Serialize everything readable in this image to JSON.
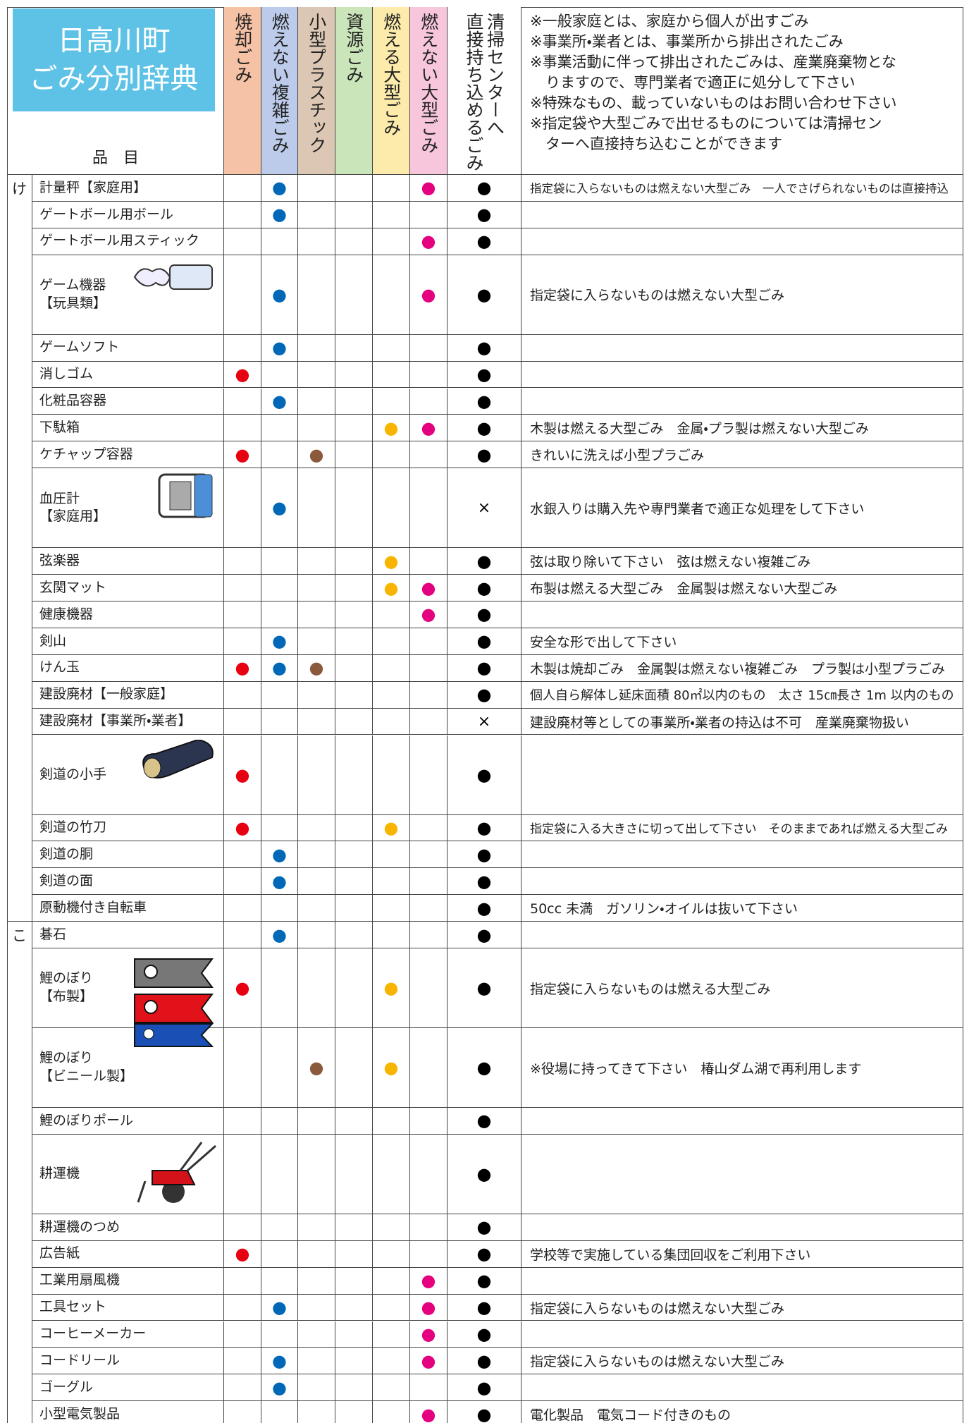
{
  "header": {
    "title": [
      "日高川町",
      "ごみ分別辞典"
    ],
    "item_label": "品　目",
    "columns": [
      {
        "label": [
          "焼却ごみ"
        ],
        "bg": "#f6c2a6",
        "dot": "#e60012"
      },
      {
        "label": [
          "燃えない複雑ごみ"
        ],
        "bg": "#bccbea",
        "dot": "#0068b7"
      },
      {
        "label": [
          "小型プラスチック"
        ],
        "bg": "#dcc7b4",
        "dot": "#8b5a3c"
      },
      {
        "label": [
          "資源ごみ"
        ],
        "bg": "#cbe5bb",
        "dot": "#3a9a3a"
      },
      {
        "label": [
          "燃える大型ごみ"
        ],
        "bg": "#fcebaa",
        "dot": "#f8b500"
      },
      {
        "label": [
          "燃えない大型ごみ"
        ],
        "bg": "#f7c6dd",
        "dot": "#e4007f"
      },
      {
        "label": [
          "清掃センターへ",
          "直接持ち込めるごみ"
        ],
        "bg": "#ffffff",
        "dot": "#000000"
      }
    ],
    "notes": [
      [
        "※一般家庭とは、家庭から個人が出すごみ"
      ],
      [
        "※事業所・業者とは、事業所から排出されたごみ"
      ],
      [
        "※事業活動に伴って排出されたごみは、産業廃棄物とな",
        "りますので、専門業者で適正に処分して下さい"
      ],
      [
        "※特殊なもの、載っていないものはお問い合わせ下さい"
      ],
      [
        "※指定袋や大型ごみで出せるものについては清掃セン",
        "ターへ直接持ち込むことができます"
      ]
    ]
  },
  "sections": [
    {
      "kana": "け",
      "rows": [
        {
          "item": [
            "計量秤【家庭用】"
          ],
          "cells": [
            null,
            "●",
            null,
            null,
            null,
            "●",
            "●"
          ],
          "note": "指定袋に入らないものは燃えない大型ごみ　一人でさげられないものは直接持込"
        },
        {
          "item": [
            "ゲートボール用ボール"
          ],
          "cells": [
            null,
            "●",
            null,
            null,
            null,
            null,
            "●"
          ]
        },
        {
          "item": [
            "ゲートボール用スティック"
          ],
          "cells": [
            null,
            null,
            null,
            null,
            null,
            "●",
            "●"
          ]
        },
        {
          "item": [
            "ゲーム機器",
            "【玩具類】"
          ],
          "cells": [
            null,
            "●",
            null,
            null,
            null,
            "●",
            "●"
          ],
          "note": "指定袋に入らないものは燃えない大型ごみ"
        },
        {
          "item": [
            "ゲームソフト"
          ],
          "cells": [
            null,
            "●",
            null,
            null,
            null,
            null,
            "●"
          ]
        },
        {
          "item": [
            "消しゴム"
          ],
          "cells": [
            "●",
            null,
            null,
            null,
            null,
            null,
            "●"
          ]
        },
        {
          "item": [
            "化粧品容器"
          ],
          "cells": [
            null,
            "●",
            null,
            null,
            null,
            null,
            "●"
          ]
        },
        {
          "item": [
            "下駄箱"
          ],
          "cells": [
            null,
            null,
            null,
            null,
            "●",
            "●",
            "●"
          ],
          "note": "木製は燃える大型ごみ　金属・プラ製は燃えない大型ごみ"
        },
        {
          "item": [
            "ケチャップ容器"
          ],
          "cells": [
            "●",
            null,
            "●",
            null,
            null,
            null,
            "●"
          ],
          "note": "きれいに洗えば小型プラごみ"
        },
        {
          "item": [
            "血圧計",
            "【家庭用】"
          ],
          "cells": [
            null,
            "●",
            null,
            null,
            null,
            null,
            "×"
          ],
          "note": "水銀入りは購入先や専門業者で適正な処理をして下さい"
        },
        {
          "item": [
            "弦楽器"
          ],
          "cells": [
            null,
            null,
            null,
            null,
            "●",
            null,
            "●"
          ],
          "note": "弦は取り除いて下さい　弦は燃えない複雑ごみ"
        },
        {
          "item": [
            "玄関マット"
          ],
          "cells": [
            null,
            null,
            null,
            null,
            "●",
            "●",
            "●"
          ],
          "note": "布製は燃える大型ごみ　金属製は燃えない大型ごみ"
        },
        {
          "item": [
            "健康機器"
          ],
          "cells": [
            null,
            null,
            null,
            null,
            null,
            "●",
            "●"
          ]
        },
        {
          "item": [
            "剣山"
          ],
          "cells": [
            null,
            "●",
            null,
            null,
            null,
            null,
            "●"
          ],
          "note": "安全な形で出して下さい"
        },
        {
          "item": [
            "けん玉"
          ],
          "cells": [
            "●",
            "●",
            "●",
            null,
            null,
            null,
            "●"
          ],
          "note": "木製は焼却ごみ　金属製は燃えない複雑ごみ　プラ製は小型プラごみ"
        },
        {
          "item": [
            "建設廃材【一般家庭】"
          ],
          "cells": [
            null,
            null,
            null,
            null,
            null,
            null,
            "●"
          ],
          "note": "個人自ら解体し延床面積 80㎡以内のもの　太さ 15㎝長さ 1m 以内のもの"
        },
        {
          "item": [
            "建設廃材【事業所・業者】"
          ],
          "cells": [
            null,
            null,
            null,
            null,
            null,
            null,
            "×"
          ],
          "note": "建設廃材等としての事業所・業者の持込は不可　産業廃棄物扱い"
        },
        {
          "item": [
            "剣道の小手"
          ],
          "cells": [
            "●",
            null,
            null,
            null,
            null,
            null,
            "●"
          ]
        },
        {
          "item": [
            "剣道の竹刀"
          ],
          "cells": [
            "●",
            null,
            null,
            null,
            "●",
            null,
            "●"
          ],
          "note": "指定袋に入る大きさに切って出して下さい　そのままであれば燃える大型ごみ"
        },
        {
          "item": [
            "剣道の胴"
          ],
          "cells": [
            null,
            "●",
            null,
            null,
            null,
            null,
            "●"
          ]
        },
        {
          "item": [
            "剣道の面"
          ],
          "cells": [
            null,
            "●",
            null,
            null,
            null,
            null,
            "●"
          ]
        },
        {
          "item": [
            "原動機付き自転車"
          ],
          "cells": [
            null,
            null,
            null,
            null,
            null,
            null,
            "●"
          ],
          "note": "50cc 未満　ガソリン・オイルは抜いて下さい"
        }
      ]
    },
    {
      "kana": "こ",
      "rows": [
        {
          "item": [
            "碁石"
          ],
          "cells": [
            null,
            "●",
            null,
            null,
            null,
            null,
            "●"
          ]
        },
        {
          "item": [
            "鯉のぼり",
            "【布製】"
          ],
          "cells": [
            "●",
            null,
            null,
            null,
            "●",
            null,
            "●"
          ],
          "note": "指定袋に入らないものは燃える大型ごみ"
        },
        {
          "item": [
            "鯉のぼり",
            "【ビニール製】"
          ],
          "cells": [
            null,
            null,
            "●",
            null,
            "●",
            null,
            "●"
          ],
          "note": "※役場に持ってきて下さい　椿山ダム湖で再利用します"
        },
        {
          "item": [
            "鯉のぼりポール"
          ],
          "cells": [
            null,
            null,
            null,
            null,
            null,
            null,
            "●"
          ]
        },
        {
          "item": [
            "耕運機"
          ],
          "cells": [
            null,
            null,
            null,
            null,
            null,
            null,
            "●"
          ]
        },
        {
          "item": [
            "耕運機のつめ"
          ],
          "cells": [
            null,
            null,
            null,
            null,
            null,
            null,
            "●"
          ]
        },
        {
          "item": [
            "広告紙"
          ],
          "cells": [
            "●",
            null,
            null,
            null,
            null,
            null,
            "●"
          ],
          "note": "学校等で実施している集団回収をご利用下さい"
        },
        {
          "item": [
            "工業用扇風機"
          ],
          "cells": [
            null,
            null,
            null,
            null,
            null,
            "●",
            "●"
          ]
        },
        {
          "item": [
            "工具セット"
          ],
          "cells": [
            null,
            "●",
            null,
            null,
            null,
            "●",
            "●"
          ],
          "note": "指定袋に入らないものは燃えない大型ごみ"
        },
        {
          "item": [
            "コーヒーメーカー"
          ],
          "cells": [
            null,
            null,
            null,
            null,
            null,
            "●",
            "●"
          ]
        },
        {
          "item": [
            "コードリール"
          ],
          "cells": [
            null,
            "●",
            null,
            null,
            null,
            "●",
            "●"
          ],
          "note": "指定袋に入らないものは燃えない大型ごみ"
        },
        {
          "item": [
            "ゴーグル"
          ],
          "cells": [
            null,
            "●",
            null,
            null,
            null,
            null,
            "●"
          ]
        },
        {
          "item": [
            "小型電気製品"
          ],
          "cells": [
            null,
            null,
            null,
            null,
            null,
            "●",
            "●"
          ],
          "note": "電化製品　電気コード付きのもの"
        }
      ]
    }
  ]
}
